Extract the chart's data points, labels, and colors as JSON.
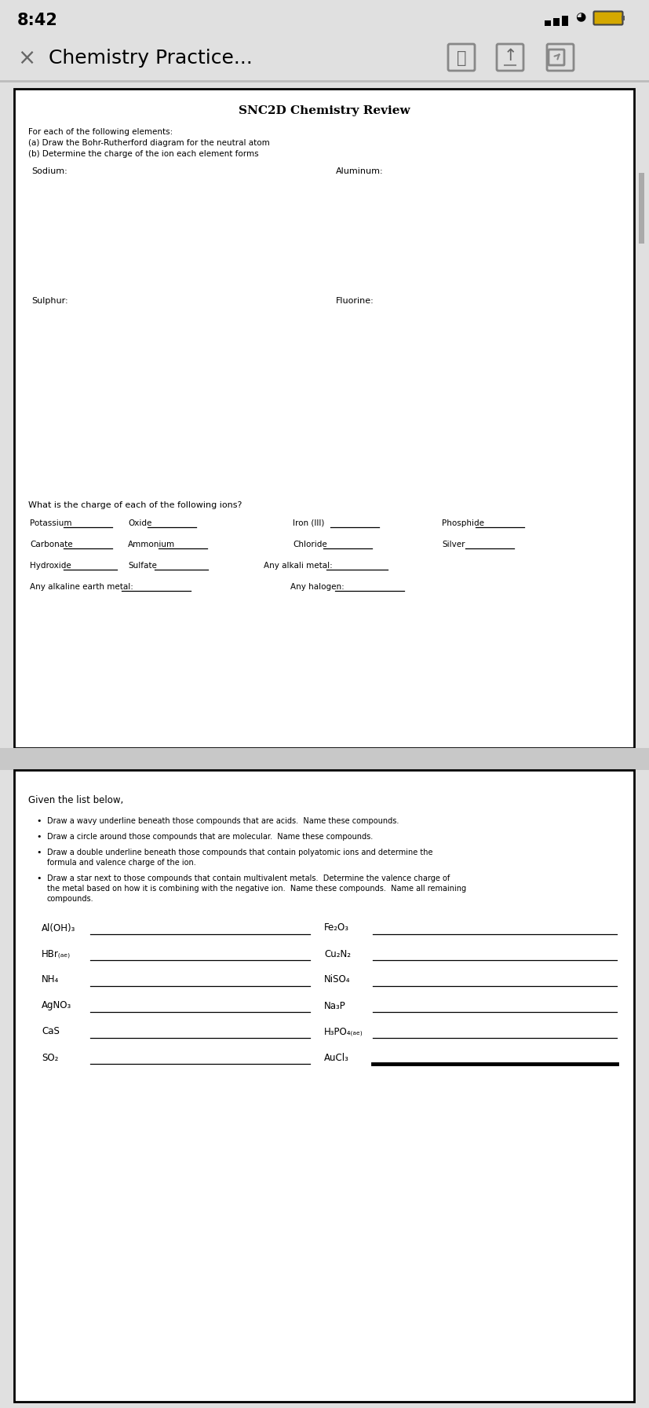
{
  "bg_color": "#e0e0e0",
  "status_time": "8:42",
  "nav_title": "Chemistry Practice...",
  "page1_title": "SNC2D Chemistry Review",
  "page1_intro_line1": "For each of the following elements:",
  "page1_intro_line2": "(a) Draw the Bohr-Rutherford diagram for the neutral atom",
  "page1_intro_line3": "(b) Determine the charge of the ion each element forms",
  "elem_tl": "Sodium:",
  "elem_tr": "Aluminum:",
  "elem_bl": "Sulphur:",
  "elem_br": "Fluorine:",
  "ions_header": "What is the charge of each of the following ions?",
  "ions_row1": [
    "Potassium",
    "Oxide",
    "Iron (III)",
    "Phosphide"
  ],
  "ions_row2": [
    "Carbonate",
    "Ammonium",
    "Chloride",
    "Silver"
  ],
  "ions_row3": [
    "Hydroxide",
    "Sulfate",
    "Any alkali metal:"
  ],
  "ions_row4_left": "Any alkaline earth metal:",
  "ions_row4_right": "Any halogen:",
  "given_header": "Given the list below,",
  "bullets": [
    "Draw a wavy underline beneath those compounds that are acids.  Name these compounds.",
    "Draw a circle around those compounds that are molecular.  Name these compounds.",
    "Draw a double underline beneath those compounds that contain polyatomic ions and determine the\nformula and valence charge of the ion.",
    "Draw a star next to those compounds that contain multivalent metals.  Determine the valence charge of\nthe metal based on how it is combining with the negative ion.  Name these compounds.  Name all remaining\ncompounds."
  ],
  "compounds_col1": [
    "Al(OH)₃",
    "HBr₍ₐₑ₎",
    "NH₄",
    "AgNO₃",
    "CaS",
    "SO₂"
  ],
  "compounds_col2": [
    "Fe₂O₃",
    "Cu₂N₂",
    "NiSO₄",
    "Na₃P",
    "H₃PO₄₍ₐₑ₎",
    "AuCl₃"
  ]
}
